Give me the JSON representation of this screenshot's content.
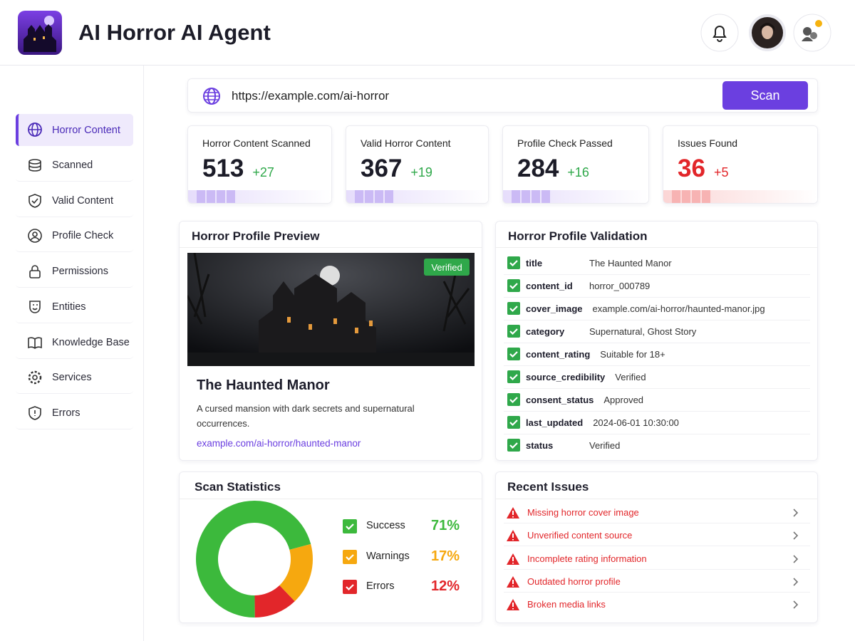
{
  "header": {
    "title": "AI Horror AI Agent"
  },
  "sidebar": {
    "items": [
      "Horror Content",
      "Scanned",
      "Valid Content",
      "Profile Check",
      "Permissions",
      "Entities",
      "Knowledge Base",
      "Services",
      "Errors"
    ]
  },
  "url_bar": {
    "url": "https://example.com/ai-horror",
    "button": "Scan"
  },
  "stats": [
    {
      "label": "Horror Content Scanned",
      "value": 513,
      "delta": "+27"
    },
    {
      "label": "Valid Horror Content",
      "value": 367,
      "delta": "+19"
    },
    {
      "label": "Profile Check Passed",
      "value": 284,
      "delta": "+16"
    },
    {
      "label": "Issues Found",
      "value": 36,
      "delta": "+5"
    }
  ],
  "profile_preview": {
    "title": "Horror Profile Preview",
    "badge": "Verified",
    "name": "The Haunted Manor",
    "description": "A cursed mansion with dark secrets and supernatural occurrences.",
    "link": "example.com/ai-horror/haunted-manor"
  },
  "validation": {
    "title": "Horror Profile Validation",
    "rows": [
      [
        "title",
        "The Haunted Manor"
      ],
      [
        "content_id",
        "horror_000789"
      ],
      [
        "cover_image",
        "example.com/ai-horror/haunted-manor.jpg"
      ],
      [
        "category",
        "Supernatural, Ghost Story"
      ],
      [
        "content_rating",
        "Suitable for 18+"
      ],
      [
        "source_credibility",
        "Verified"
      ],
      [
        "consent_status",
        "Approved"
      ],
      [
        "last_updated",
        "2024-06-01 10:30:00"
      ],
      [
        "status",
        "Verified"
      ]
    ]
  },
  "scan_statistics": {
    "title": "Scan Statistics",
    "type": "pie",
    "categories": [
      "Success",
      "Warnings",
      "Errors"
    ],
    "values": [
      71,
      17,
      12
    ],
    "value_labels": [
      "71%",
      "17%",
      "12%"
    ],
    "colors": [
      "#3cb93c",
      "#f6a80f",
      "#e2262a"
    ]
  },
  "recent_issues": {
    "title": "Recent Issues",
    "items": [
      "Missing horror cover image",
      "Unverified content source",
      "Incomplete rating information",
      "Outdated horror profile",
      "Broken media links"
    ]
  }
}
